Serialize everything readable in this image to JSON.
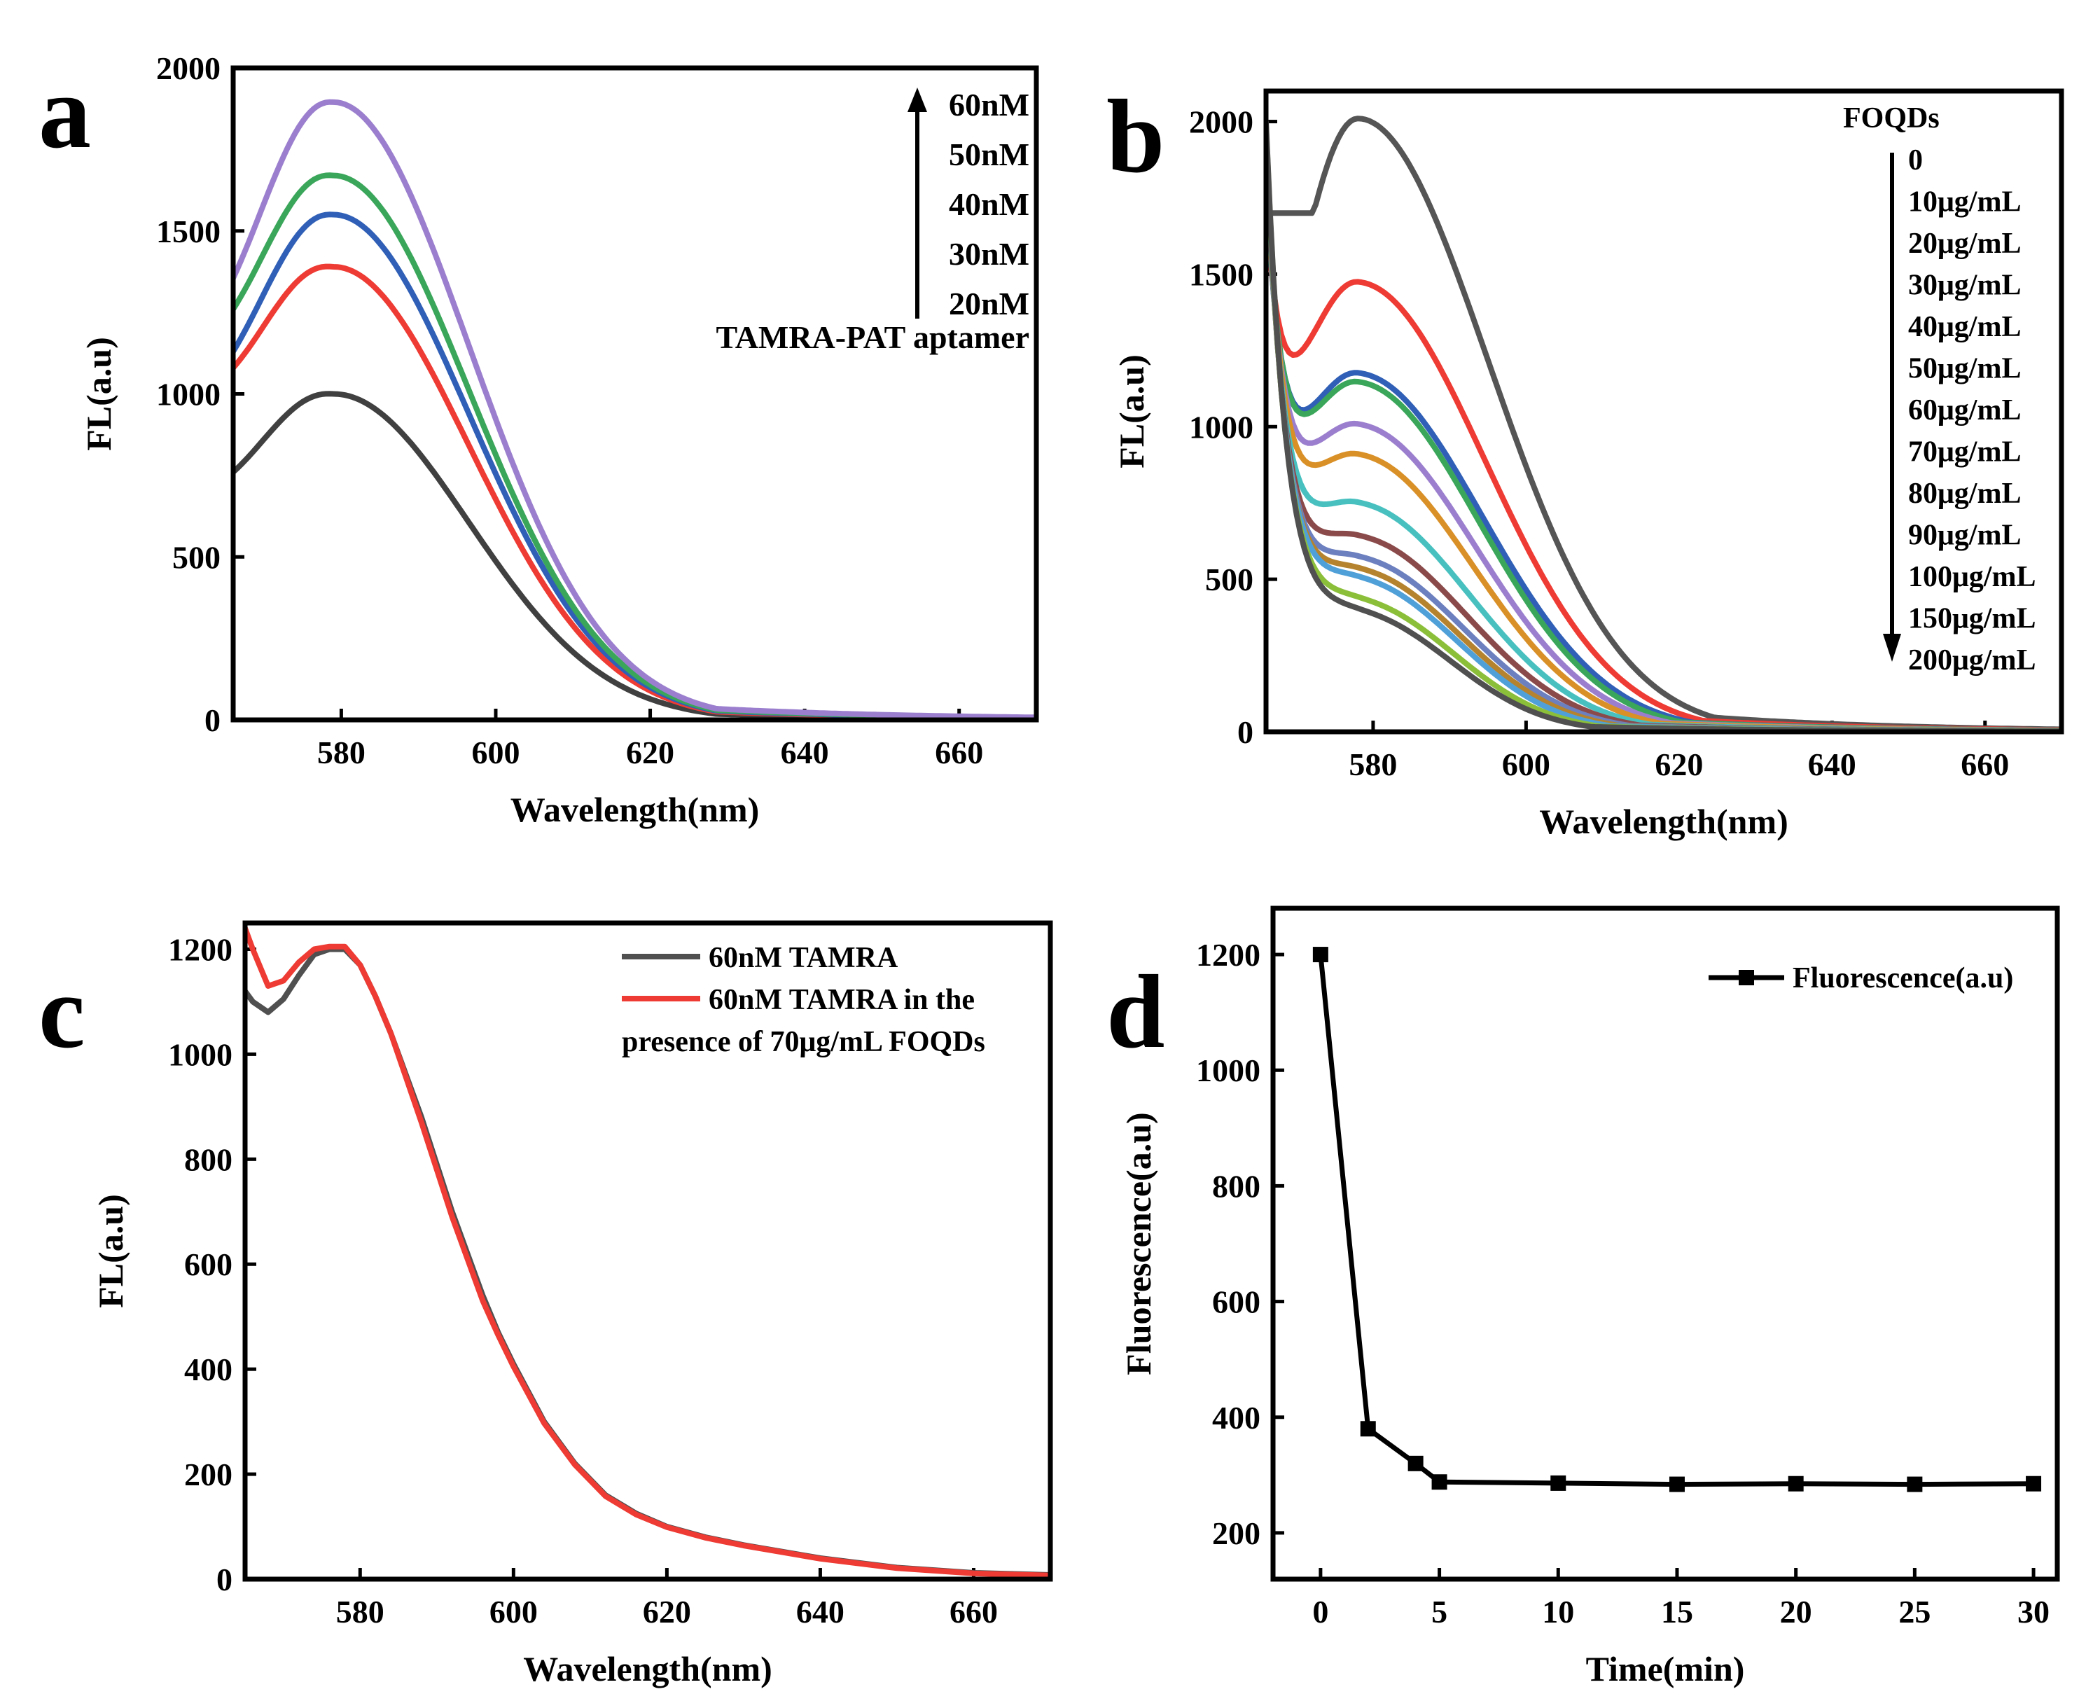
{
  "figure": {
    "panel_letters": [
      "a",
      "b",
      "c",
      "d"
    ]
  },
  "chart_data": [
    {
      "id": "a",
      "type": "line",
      "title": "",
      "xlabel": "Wavelength(nm)",
      "ylabel": "FL(a.u)",
      "xlim": [
        566,
        670
      ],
      "ylim": [
        0,
        2000
      ],
      "xticks": [
        580,
        600,
        620,
        640,
        660
      ],
      "yticks": [
        0,
        500,
        1000,
        1500,
        2000
      ],
      "legend_title": "TAMRA-PAT aptamer",
      "legend_direction": "up",
      "series": [
        {
          "name": "20nM",
          "color": "#404040",
          "peak": 1000,
          "start": 760
        },
        {
          "name": "30nM",
          "color": "#ee3b33",
          "peak": 1390,
          "start": 1080
        },
        {
          "name": "40nM",
          "color": "#2f5fb6",
          "peak": 1550,
          "start": 1130
        },
        {
          "name": "50nM",
          "color": "#3aa65a",
          "peak": 1670,
          "start": 1260
        },
        {
          "name": "60nM",
          "color": "#9b7fce",
          "peak": 1895,
          "start": 1355
        }
      ]
    },
    {
      "id": "b",
      "type": "line",
      "title": "",
      "xlabel": "Wavelength(nm)",
      "ylabel": "FL(a.u)",
      "xlim": [
        566,
        670
      ],
      "ylim": [
        0,
        2100
      ],
      "xticks": [
        580,
        600,
        620,
        640,
        660
      ],
      "yticks": [
        0,
        500,
        1000,
        1500,
        2000
      ],
      "legend_title": "FOQDs",
      "legend_direction": "down",
      "series": [
        {
          "name": "0",
          "color": "#555555",
          "peak": 2010
        },
        {
          "name": "10μg/mL",
          "color": "#ee3b33",
          "peak": 1470
        },
        {
          "name": "20μg/mL",
          "color": "#2f5fb6",
          "peak": 1170
        },
        {
          "name": "30μg/mL",
          "color": "#3aa65a",
          "peak": 1140
        },
        {
          "name": "40μg/mL",
          "color": "#9b7fce",
          "peak": 1000
        },
        {
          "name": "50μg/mL",
          "color": "#d99027",
          "peak": 900
        },
        {
          "name": "60μg/mL",
          "color": "#48c0c0",
          "peak": 740
        },
        {
          "name": "70μg/mL",
          "color": "#8b4a4a",
          "peak": 630
        },
        {
          "name": "80μg/mL",
          "color": "#6c7fbf",
          "peak": 560
        },
        {
          "name": "90μg/mL",
          "color": "#b5832e",
          "peak": 520
        },
        {
          "name": "100μg/mL",
          "color": "#4fa0d8",
          "peak": 490
        },
        {
          "name": "150μg/mL",
          "color": "#8bbf3a",
          "peak": 420
        },
        {
          "name": "200μg/mL",
          "color": "#505050",
          "peak": 380
        }
      ]
    },
    {
      "id": "c",
      "type": "line",
      "title": "",
      "xlabel": "Wavelength(nm)",
      "ylabel": "FL(a.u)",
      "xlim": [
        565,
        670
      ],
      "ylim": [
        0,
        1250
      ],
      "xticks": [
        580,
        600,
        620,
        640,
        660
      ],
      "yticks": [
        0,
        200,
        400,
        600,
        800,
        1000,
        1200
      ],
      "series": [
        {
          "name": "60nM TAMRA",
          "color": "#505050",
          "x": [
            565,
            566,
            568,
            570,
            572,
            574,
            576,
            578,
            580,
            582,
            584,
            586,
            588,
            590,
            592,
            594,
            596,
            598,
            600,
            604,
            608,
            612,
            616,
            620,
            625,
            630,
            640,
            650,
            660,
            670
          ],
          "y": [
            1120,
            1100,
            1080,
            1105,
            1150,
            1190,
            1200,
            1200,
            1170,
            1110,
            1040,
            960,
            880,
            790,
            700,
            620,
            540,
            470,
            410,
            300,
            220,
            160,
            125,
            100,
            80,
            65,
            40,
            22,
            12,
            8
          ]
        },
        {
          "name": "60nM TAMRA in the presence of 70μg/mL FOQDs",
          "legend_lines": [
            "60nM TAMRA in the",
            "presence of 70μg/mL FOQDs"
          ],
          "color": "#ee3b33",
          "x": [
            565,
            566,
            568,
            570,
            572,
            574,
            576,
            578,
            580,
            582,
            584,
            586,
            588,
            590,
            592,
            594,
            596,
            598,
            600,
            604,
            608,
            612,
            616,
            620,
            625,
            630,
            640,
            650,
            660,
            670
          ],
          "y": [
            1240,
            1200,
            1130,
            1140,
            1175,
            1200,
            1205,
            1205,
            1170,
            1110,
            1040,
            955,
            870,
            780,
            690,
            610,
            530,
            465,
            405,
            297,
            218,
            158,
            123,
            99,
            79,
            64,
            39,
            21,
            11,
            7
          ]
        }
      ]
    },
    {
      "id": "d",
      "type": "line",
      "title": "",
      "xlabel": "Time(min)",
      "ylabel": "Fluorescence(a.u)",
      "xlim": [
        -2,
        31
      ],
      "ylim": [
        120,
        1280
      ],
      "xticks": [
        0,
        5,
        10,
        15,
        20,
        25,
        30
      ],
      "yticks": [
        200,
        400,
        600,
        800,
        1000,
        1200
      ],
      "series": [
        {
          "name": "Fluorescence(a.u)",
          "color": "#000000",
          "marker": "square",
          "x": [
            0,
            2,
            4,
            5,
            10,
            15,
            20,
            25,
            30
          ],
          "y": [
            1200,
            380,
            320,
            288,
            286,
            284,
            285,
            284,
            285
          ]
        }
      ]
    }
  ]
}
